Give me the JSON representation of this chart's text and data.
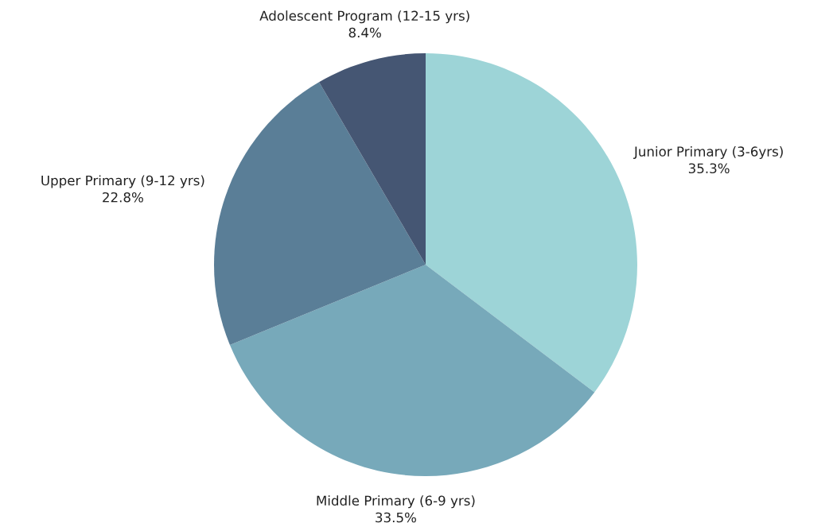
{
  "chart_data": {
    "type": "pie",
    "categories": [
      "Junior Primary (3-6yrs)",
      "Middle Primary (6-9 yrs)",
      "Upper Primary (9-12 yrs)",
      "Adolescent Program (12-15 yrs)"
    ],
    "values": [
      35.3,
      33.5,
      22.8,
      8.4
    ],
    "value_labels": [
      "35.3%",
      "33.5%",
      "22.8%",
      "8.4%"
    ],
    "colors": [
      "#9dd4d7",
      "#77a9ba",
      "#5a7e97",
      "#455673"
    ],
    "legend": false
  }
}
